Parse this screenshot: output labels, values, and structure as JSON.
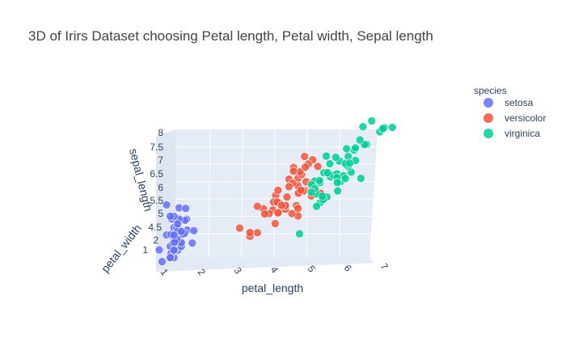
{
  "chart_data": {
    "type": "scatter3d",
    "title": "3D of Irirs Dataset choosing Petal length, Petal width, Sepal length",
    "xlabel": "petal_length",
    "ylabel": "petal_width",
    "zlabel": "sepal_length",
    "x_ticks": [
      "1",
      "2",
      "3",
      "4",
      "5",
      "6",
      "7"
    ],
    "z_ticks": [
      "1",
      "2",
      "4.5",
      "5",
      "5.5",
      "6",
      "6.5",
      "7",
      "7.5",
      "8"
    ],
    "x_range": [
      1,
      7
    ],
    "y_range": [
      0,
      2.6
    ],
    "z_range": [
      4.3,
      7.9
    ],
    "legend": {
      "title": "species",
      "placement": "right"
    },
    "series": [
      {
        "name": "setosa",
        "color": "#636efa",
        "points": [
          [
            1.4,
            0.2,
            5.1
          ],
          [
            1.4,
            0.2,
            4.9
          ],
          [
            1.3,
            0.2,
            4.7
          ],
          [
            1.5,
            0.2,
            4.6
          ],
          [
            1.4,
            0.2,
            5.0
          ],
          [
            1.7,
            0.4,
            5.4
          ],
          [
            1.4,
            0.3,
            4.6
          ],
          [
            1.5,
            0.2,
            5.0
          ],
          [
            1.4,
            0.2,
            4.4
          ],
          [
            1.5,
            0.1,
            4.9
          ],
          [
            1.5,
            0.2,
            5.4
          ],
          [
            1.6,
            0.2,
            4.8
          ],
          [
            1.4,
            0.1,
            4.8
          ],
          [
            1.1,
            0.1,
            4.3
          ],
          [
            1.2,
            0.2,
            5.8
          ],
          [
            1.5,
            0.4,
            5.7
          ],
          [
            1.3,
            0.4,
            5.4
          ],
          [
            1.4,
            0.3,
            5.1
          ],
          [
            1.7,
            0.3,
            5.7
          ],
          [
            1.5,
            0.3,
            5.1
          ],
          [
            1.7,
            0.2,
            5.4
          ],
          [
            1.5,
            0.4,
            5.1
          ],
          [
            1.0,
            0.2,
            4.6
          ],
          [
            1.7,
            0.5,
            5.1
          ],
          [
            1.9,
            0.2,
            4.8
          ],
          [
            1.6,
            0.2,
            5.0
          ],
          [
            1.6,
            0.4,
            5.0
          ],
          [
            1.5,
            0.2,
            5.2
          ],
          [
            1.4,
            0.2,
            5.2
          ],
          [
            1.6,
            0.2,
            4.7
          ],
          [
            1.6,
            0.2,
            4.8
          ],
          [
            1.5,
            0.4,
            5.4
          ],
          [
            1.5,
            0.1,
            5.2
          ],
          [
            1.4,
            0.2,
            5.5
          ],
          [
            1.5,
            0.1,
            4.9
          ],
          [
            1.2,
            0.2,
            5.0
          ],
          [
            1.3,
            0.2,
            5.5
          ],
          [
            1.5,
            0.1,
            4.9
          ],
          [
            1.3,
            0.2,
            4.4
          ],
          [
            1.5,
            0.2,
            5.1
          ],
          [
            1.3,
            0.3,
            5.0
          ],
          [
            1.3,
            0.3,
            4.5
          ],
          [
            1.3,
            0.2,
            4.4
          ],
          [
            1.6,
            0.6,
            5.0
          ],
          [
            1.9,
            0.4,
            5.1
          ],
          [
            1.4,
            0.3,
            4.8
          ],
          [
            1.6,
            0.2,
            5.1
          ],
          [
            1.4,
            0.2,
            4.6
          ],
          [
            1.5,
            0.2,
            5.3
          ],
          [
            1.4,
            0.2,
            5.0
          ]
        ]
      },
      {
        "name": "versicolor",
        "color": "#ef553b",
        "points": [
          [
            4.7,
            1.4,
            7.0
          ],
          [
            4.5,
            1.5,
            6.4
          ],
          [
            4.9,
            1.5,
            6.9
          ],
          [
            4.0,
            1.3,
            5.5
          ],
          [
            4.6,
            1.5,
            6.5
          ],
          [
            4.5,
            1.3,
            5.7
          ],
          [
            4.7,
            1.6,
            6.3
          ],
          [
            3.3,
            1.0,
            4.9
          ],
          [
            4.6,
            1.3,
            6.6
          ],
          [
            3.9,
            1.4,
            5.2
          ],
          [
            3.5,
            1.0,
            5.0
          ],
          [
            4.2,
            1.5,
            5.9
          ],
          [
            4.0,
            1.0,
            6.0
          ],
          [
            4.7,
            1.4,
            6.1
          ],
          [
            3.6,
            1.3,
            5.6
          ],
          [
            4.4,
            1.4,
            6.7
          ],
          [
            4.5,
            1.5,
            5.6
          ],
          [
            4.1,
            1.0,
            5.8
          ],
          [
            4.5,
            1.5,
            6.2
          ],
          [
            3.9,
            1.1,
            5.6
          ],
          [
            4.8,
            1.8,
            5.9
          ],
          [
            4.0,
            1.3,
            6.1
          ],
          [
            4.9,
            1.5,
            6.3
          ],
          [
            4.7,
            1.2,
            6.1
          ],
          [
            4.3,
            1.3,
            6.4
          ],
          [
            4.4,
            1.4,
            6.6
          ],
          [
            4.8,
            1.4,
            6.8
          ],
          [
            5.0,
            1.7,
            6.7
          ],
          [
            4.5,
            1.5,
            6.0
          ],
          [
            3.5,
            1.0,
            5.7
          ],
          [
            3.8,
            1.1,
            5.5
          ],
          [
            3.7,
            1.0,
            5.5
          ],
          [
            3.9,
            1.2,
            5.8
          ],
          [
            5.1,
            1.6,
            6.0
          ],
          [
            4.5,
            1.5,
            5.4
          ],
          [
            4.5,
            1.6,
            6.0
          ],
          [
            4.7,
            1.5,
            6.7
          ],
          [
            4.4,
            1.3,
            6.3
          ],
          [
            4.1,
            1.3,
            5.6
          ],
          [
            4.0,
            1.3,
            5.5
          ],
          [
            4.4,
            1.2,
            5.5
          ],
          [
            4.6,
            1.4,
            6.1
          ],
          [
            4.0,
            1.2,
            5.8
          ],
          [
            3.3,
            1.0,
            5.0
          ],
          [
            4.2,
            1.3,
            5.6
          ],
          [
            4.2,
            1.2,
            5.7
          ],
          [
            4.2,
            1.3,
            5.7
          ],
          [
            4.3,
            1.3,
            6.2
          ],
          [
            3.0,
            1.1,
            5.1
          ],
          [
            4.1,
            1.3,
            5.7
          ]
        ]
      },
      {
        "name": "virginica",
        "color": "#00cc96",
        "points": [
          [
            6.0,
            2.5,
            6.3
          ],
          [
            5.1,
            1.9,
            5.8
          ],
          [
            5.9,
            2.1,
            7.1
          ],
          [
            5.6,
            1.8,
            6.3
          ],
          [
            5.8,
            2.2,
            6.5
          ],
          [
            6.6,
            2.1,
            7.6
          ],
          [
            4.5,
            1.7,
            4.9
          ],
          [
            6.3,
            1.8,
            7.3
          ],
          [
            5.8,
            1.8,
            6.7
          ],
          [
            6.1,
            2.5,
            7.2
          ],
          [
            5.1,
            2.0,
            6.5
          ],
          [
            5.3,
            1.9,
            6.4
          ],
          [
            5.5,
            2.1,
            6.8
          ],
          [
            5.0,
            2.0,
            5.7
          ],
          [
            5.1,
            2.4,
            5.8
          ],
          [
            5.3,
            2.3,
            6.4
          ],
          [
            5.5,
            1.8,
            6.5
          ],
          [
            6.7,
            2.2,
            7.7
          ],
          [
            6.9,
            2.3,
            7.7
          ],
          [
            5.0,
            1.5,
            6.0
          ],
          [
            5.7,
            2.3,
            6.9
          ],
          [
            4.9,
            2.0,
            5.6
          ],
          [
            6.7,
            2.0,
            7.7
          ],
          [
            4.9,
            1.8,
            6.3
          ],
          [
            5.7,
            2.1,
            6.7
          ],
          [
            6.0,
            1.8,
            7.2
          ],
          [
            4.8,
            1.8,
            6.2
          ],
          [
            4.9,
            1.8,
            6.1
          ],
          [
            5.6,
            2.1,
            6.4
          ],
          [
            5.8,
            1.6,
            7.2
          ],
          [
            6.1,
            1.9,
            7.4
          ],
          [
            6.4,
            2.0,
            7.9
          ],
          [
            5.6,
            2.2,
            6.4
          ],
          [
            5.1,
            1.5,
            6.3
          ],
          [
            5.6,
            1.4,
            6.1
          ],
          [
            6.1,
            2.3,
            7.7
          ],
          [
            5.6,
            2.4,
            6.3
          ],
          [
            5.5,
            1.8,
            6.4
          ],
          [
            4.8,
            1.8,
            6.0
          ],
          [
            5.4,
            2.1,
            6.9
          ],
          [
            5.6,
            2.4,
            6.7
          ],
          [
            5.1,
            2.3,
            6.9
          ],
          [
            5.1,
            1.9,
            5.8
          ],
          [
            5.9,
            2.3,
            6.8
          ],
          [
            5.7,
            2.5,
            6.7
          ],
          [
            5.2,
            2.3,
            6.7
          ],
          [
            5.0,
            1.9,
            6.3
          ],
          [
            5.2,
            2.0,
            6.5
          ],
          [
            5.4,
            2.3,
            6.2
          ],
          [
            5.1,
            1.8,
            5.9
          ]
        ]
      }
    ]
  }
}
